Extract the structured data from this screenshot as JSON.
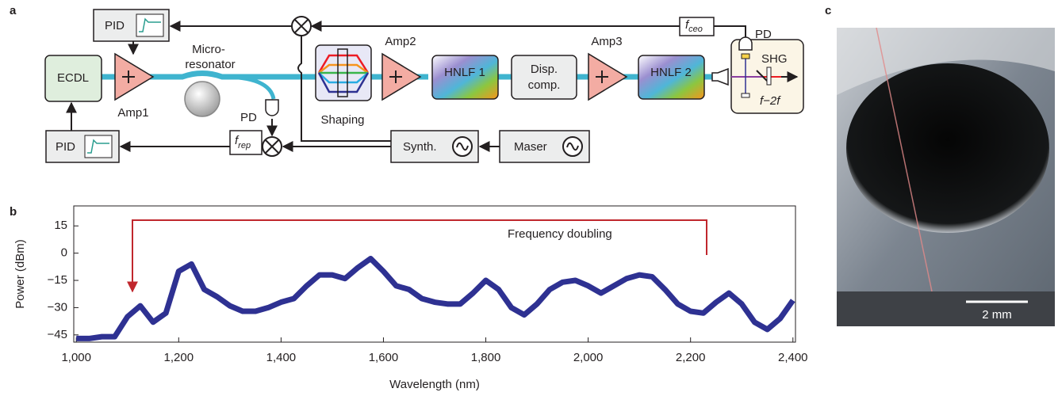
{
  "panel_labels": [
    "a",
    "b",
    "c"
  ],
  "diagram": {
    "pid_top": "PID",
    "pid_bottom": "PID",
    "ecdl": "ECDL",
    "amp1": "Amp1",
    "micro_1": "Micro-",
    "micro_2": "resonator",
    "pd_rep": "PD",
    "f_rep": {
      "symbol": "f",
      "sub": "rep"
    },
    "shaping": "Shaping",
    "amp2": "Amp2",
    "hnlf1": "HNLF 1",
    "disp_1": "Disp.",
    "disp_2": "comp.",
    "amp3": "Amp3",
    "hnlf2": "HNLF 2",
    "pd_ceo": "PD",
    "shg": "SHG",
    "f2f": "f−2f",
    "f_ceo": {
      "symbol": "f",
      "sub": "ceo"
    },
    "synth": "Synth.",
    "maser": "Maser"
  },
  "chart_data": {
    "type": "line",
    "annotation": "Frequency doubling",
    "xlabel": "Wavelength (nm)",
    "ylabel": "Power (dBm)",
    "color": "#2e3192",
    "x": [
      1000,
      1025,
      1050,
      1075,
      1100,
      1125,
      1150,
      1175,
      1200,
      1225,
      1250,
      1275,
      1300,
      1325,
      1350,
      1375,
      1400,
      1425,
      1450,
      1475,
      1500,
      1525,
      1550,
      1575,
      1600,
      1625,
      1650,
      1675,
      1700,
      1725,
      1750,
      1775,
      1800,
      1825,
      1850,
      1875,
      1900,
      1925,
      1950,
      1975,
      2000,
      2025,
      2050,
      2075,
      2100,
      2125,
      2150,
      2175,
      2200,
      2225,
      2250,
      2275,
      2300,
      2325,
      2350,
      2375,
      2400
    ],
    "values": [
      -47,
      -47,
      -46,
      -46,
      -35,
      -29,
      -38,
      -33,
      -10,
      -6,
      -20,
      -24,
      -29,
      -32,
      -32,
      -30,
      -27,
      -25,
      -18,
      -12,
      -12,
      -14,
      -8,
      -3,
      -10,
      -18,
      -20,
      -25,
      -27,
      -28,
      -28,
      -22,
      -15,
      -20,
      -30,
      -34,
      -28,
      -20,
      -16,
      -15,
      -18,
      -22,
      -18,
      -14,
      -12,
      -13,
      -20,
      -28,
      -32,
      -33,
      -27,
      -22,
      -28,
      -38,
      -42,
      -36,
      -26
    ],
    "xlim": [
      995,
      2405
    ],
    "ylim": [
      -49,
      26
    ],
    "xticks": [
      {
        "value": 1000,
        "label": "1,000"
      },
      {
        "value": 1200,
        "label": "1,200"
      },
      {
        "value": 1400,
        "label": "1,400"
      },
      {
        "value": 1600,
        "label": "1,600"
      },
      {
        "value": 1800,
        "label": "1,800"
      },
      {
        "value": 2000,
        "label": "2,000"
      },
      {
        "value": 2200,
        "label": "2,200"
      },
      {
        "value": 2400,
        "label": "2,400"
      }
    ],
    "yticks": [
      {
        "value": -45,
        "label": "−45"
      },
      {
        "value": -30,
        "label": "−30"
      },
      {
        "value": -15,
        "label": "−15"
      },
      0,
      15
    ]
  },
  "photo": {
    "scale_bar": "2 mm"
  }
}
